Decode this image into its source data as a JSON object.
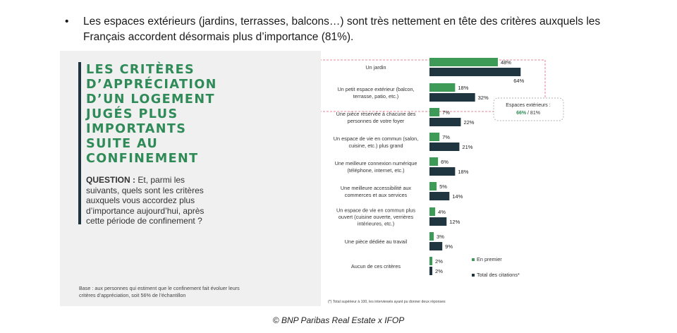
{
  "bullet": {
    "symbol": "•",
    "text": "Les espaces extérieurs (jardins, terrasses, balcons…) sont très nettement en tête des critères auxquels les Français accordent désormais plus d’importance (81%)."
  },
  "panel": {
    "title_lines": [
      "LES CRITÈRES",
      "D’APPRÉCIATION",
      "D’UN LOGEMENT",
      "JUGÉS PLUS",
      "IMPORTANTS",
      "SUITE AU",
      "CONFINEMENT"
    ],
    "question_label": "QUESTION :",
    "question_text": " Et, parmi les suivants, quels sont les critères auxquels vous accordez plus d’importance aujourd’hui, après cette période de confinement ?",
    "base_note": "Base : aux personnes qui estiment que le confinement fait évoluer leurs critères d’appréciation, soit 56% de l’échantillon"
  },
  "footnote": "(*) Total supérieur à 100, les interviewés ayant pu donner deux réponses",
  "credit": "© BNP Paribas Real Estate x IFOP",
  "colors": {
    "first": "#3d9a57",
    "total": "#1f3540",
    "highlight": "#e0607a",
    "accent": "#2e8b57"
  },
  "chart_data": {
    "type": "bar",
    "orientation": "horizontal",
    "categories": [
      [
        "Un jardin"
      ],
      [
        "Un petit espace extérieur (balcon,",
        "terrasse, patio, etc.)"
      ],
      [
        "Une pièce réservée à chacune des",
        "personnes de votre foyer"
      ],
      [
        "Un espace de vie en commun (salon,",
        "cuisine, etc.) plus grand"
      ],
      [
        "Une meilleure connexion numérique",
        "(téléphone, internet, etc.)"
      ],
      [
        "Une meilleure accessibilité aux",
        "commerces et aux services"
      ],
      [
        "Un espace de vie en commun plus",
        "ouvert (cuisine ouverte, verrières",
        "intérieures, etc.)"
      ],
      [
        "Une pièce dédiée au travail"
      ],
      [
        "Aucun de ces critères"
      ]
    ],
    "series": [
      {
        "name": "En premier",
        "values": [
          48,
          18,
          7,
          7,
          6,
          5,
          4,
          3,
          2
        ],
        "labels": [
          "48%",
          "18%",
          "7%",
          "7%",
          "6%",
          "5%",
          "4%",
          "3%",
          "2%"
        ]
      },
      {
        "name": "Total des citations*",
        "values": [
          64,
          32,
          22,
          21,
          18,
          14,
          12,
          9,
          2
        ],
        "labels": [
          "64%",
          "32%",
          "22%",
          "21%",
          "18%",
          "14%",
          "12%",
          "9%",
          "2%"
        ]
      }
    ],
    "xlim": [
      0,
      100
    ],
    "legend_position": "bottom-right",
    "annotation": {
      "label": "Espaces extérieurs :",
      "value_first": "66%",
      "separator": " / ",
      "value_total": "81%"
    }
  }
}
